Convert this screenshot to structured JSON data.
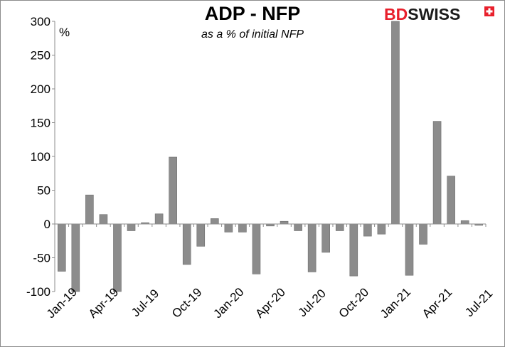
{
  "brand": {
    "part1": "BD",
    "part2": "SWISS",
    "accent_color": "#e8202c",
    "mark_icon": "plus-cross-icon"
  },
  "chart_data": {
    "type": "bar",
    "title": "ADP - NFP",
    "subtitle": "as a % of initial NFP",
    "ylabel": "%",
    "xlabel": "",
    "ylim": [
      -100,
      300
    ],
    "yticks": [
      -100,
      -50,
      0,
      50,
      100,
      150,
      200,
      250,
      300
    ],
    "grid": false,
    "bar_color": "#8c8c8c",
    "categories": [
      "Jan-19",
      "Feb-19",
      "Mar-19",
      "Apr-19",
      "May-19",
      "Jun-19",
      "Jul-19",
      "Aug-19",
      "Sep-19",
      "Oct-19",
      "Nov-19",
      "Dec-19",
      "Jan-20",
      "Feb-20",
      "Mar-20",
      "Apr-20",
      "May-20",
      "Jun-20",
      "Jul-20",
      "Aug-20",
      "Sep-20",
      "Oct-20",
      "Nov-20",
      "Dec-20",
      "Jan-21",
      "Feb-21",
      "Mar-21",
      "Apr-21",
      "May-21",
      "Jun-21",
      "Jul-21"
    ],
    "tick_labels": [
      "Jan-19",
      "Apr-19",
      "Jul-19",
      "Oct-19",
      "Jan-20",
      "Apr-20",
      "Jul-20",
      "Oct-20",
      "Jan-21",
      "Apr-21",
      "Jul-21"
    ],
    "values": [
      -70,
      -100,
      43,
      14,
      -100,
      -10,
      2,
      15,
      99,
      -60,
      -33,
      8,
      -12,
      -12,
      -74,
      -3,
      4,
      -10,
      -71,
      -42,
      -10,
      -77,
      -18,
      -15,
      300,
      -76,
      -30,
      152,
      71,
      5,
      -2
    ]
  }
}
